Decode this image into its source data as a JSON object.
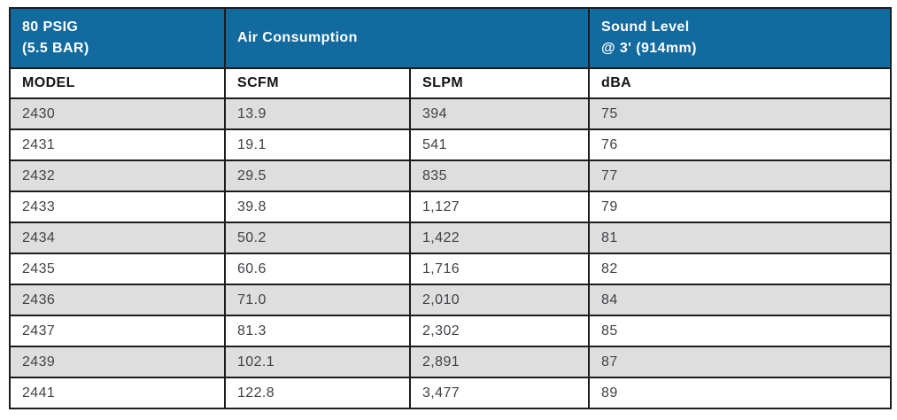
{
  "header": {
    "pressure_line1": "80 PSIG",
    "pressure_line2": "(5.5 BAR)",
    "air_consumption": "Air Consumption",
    "sound_line1": "Sound Level",
    "sound_line2": "@ 3' (914mm)"
  },
  "columns": [
    "MODEL",
    "SCFM",
    "SLPM",
    "dBA"
  ],
  "rows": [
    {
      "model": "2430",
      "scfm": "13.9",
      "slpm": "394",
      "dba": "75"
    },
    {
      "model": "2431",
      "scfm": "19.1",
      "slpm": "541",
      "dba": "76"
    },
    {
      "model": "2432",
      "scfm": "29.5",
      "slpm": "835",
      "dba": "77"
    },
    {
      "model": "2433",
      "scfm": "39.8",
      "slpm": "1,127",
      "dba": "79"
    },
    {
      "model": "2434",
      "scfm": "50.2",
      "slpm": "1,422",
      "dba": "81"
    },
    {
      "model": "2435",
      "scfm": "60.6",
      "slpm": "1,716",
      "dba": "82"
    },
    {
      "model": "2436",
      "scfm": "71.0",
      "slpm": "2,010",
      "dba": "84"
    },
    {
      "model": "2437",
      "scfm": "81.3",
      "slpm": "2,302",
      "dba": "85"
    },
    {
      "model": "2439",
      "scfm": "102.1",
      "slpm": "2,891",
      "dba": "87"
    },
    {
      "model": "2441",
      "scfm": "122.8",
      "slpm": "3,477",
      "dba": "89"
    }
  ],
  "colors": {
    "header-bg": "#136a9f",
    "header-text": "#ffffff",
    "row-alt-bg": "#dedede",
    "row-bg": "#ffffff",
    "border": "#1c1c1c",
    "data-text": "#3f4347",
    "subheader-text": "#141414"
  }
}
